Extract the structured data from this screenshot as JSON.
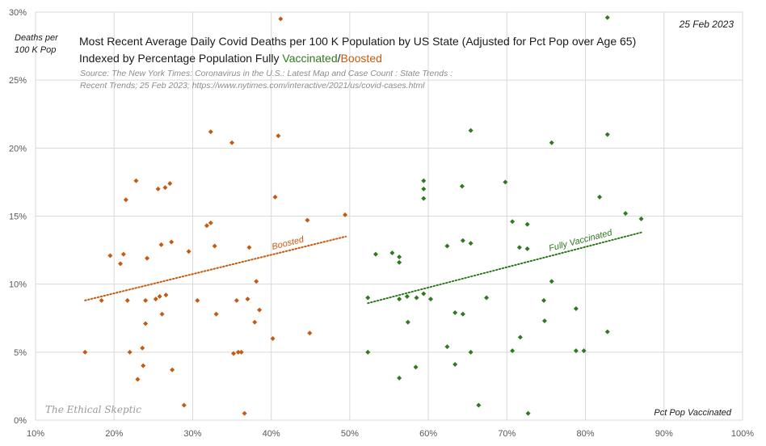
{
  "header": {
    "date": "25 Feb 2023",
    "watermark": "The Ethical Skeptic"
  },
  "chart_data": {
    "type": "scatter",
    "title_line1": "Most Recent Average Daily Covid Deaths per 100 K Population by US State (Adjusted for Pct Pop over Age 65)",
    "title_line2_prefix": "Indexed by Percentage Population Fully ",
    "title_vaccinated": "Vaccinated",
    "title_separator": "/",
    "title_boosted": "Boosted",
    "source": "Source: The New York Times: Coronavirus in the U.S.: Latest Map and Case Count : State Trends : Recent Trends; 25 Feb 2023; https://www.nytimes.com/interactive/2021/us/covid-cases.html",
    "ylabel": "Deaths per 100 K Pop",
    "xlabel": "Pct Pop Vaccinated",
    "xlim": [
      10,
      100
    ],
    "ylim": [
      0,
      30
    ],
    "x_ticks": [
      "10%",
      "20%",
      "30%",
      "40%",
      "50%",
      "60%",
      "70%",
      "80%",
      "90%",
      "100%"
    ],
    "y_ticks": [
      "0%",
      "5%",
      "10%",
      "15%",
      "20%",
      "25%",
      "30%"
    ],
    "grid": true,
    "series": [
      {
        "name": "Boosted",
        "color": "#c55a11",
        "trendline_label": "Boosted",
        "trendline": {
          "x0": 16.3,
          "y0": 8.8,
          "x1": 49.5,
          "y1": 13.5
        },
        "points": [
          {
            "x": 16.3,
            "y": 5.0
          },
          {
            "x": 18.4,
            "y": 8.8
          },
          {
            "x": 19.5,
            "y": 12.1
          },
          {
            "x": 20.8,
            "y": 11.5
          },
          {
            "x": 21.2,
            "y": 12.2
          },
          {
            "x": 21.5,
            "y": 16.2
          },
          {
            "x": 21.7,
            "y": 8.8
          },
          {
            "x": 22.0,
            "y": 5.0
          },
          {
            "x": 22.8,
            "y": 17.6
          },
          {
            "x": 23.0,
            "y": 3.0
          },
          {
            "x": 23.6,
            "y": 5.3
          },
          {
            "x": 23.7,
            "y": 4.0
          },
          {
            "x": 24.0,
            "y": 7.1
          },
          {
            "x": 24.0,
            "y": 8.8
          },
          {
            "x": 24.2,
            "y": 11.9
          },
          {
            "x": 25.3,
            "y": 8.9
          },
          {
            "x": 25.6,
            "y": 17.0
          },
          {
            "x": 25.8,
            "y": 9.1
          },
          {
            "x": 26.0,
            "y": 12.9
          },
          {
            "x": 26.1,
            "y": 7.8
          },
          {
            "x": 26.5,
            "y": 17.1
          },
          {
            "x": 26.6,
            "y": 9.2
          },
          {
            "x": 27.1,
            "y": 17.4
          },
          {
            "x": 27.3,
            "y": 13.1
          },
          {
            "x": 27.4,
            "y": 3.7
          },
          {
            "x": 28.9,
            "y": 1.1
          },
          {
            "x": 29.5,
            "y": 12.4
          },
          {
            "x": 30.6,
            "y": 8.8
          },
          {
            "x": 31.8,
            "y": 14.3
          },
          {
            "x": 32.3,
            "y": 21.2
          },
          {
            "x": 32.3,
            "y": 14.5
          },
          {
            "x": 32.8,
            "y": 12.8
          },
          {
            "x": 33.0,
            "y": 7.8
          },
          {
            "x": 35.0,
            "y": 20.4
          },
          {
            "x": 35.2,
            "y": 4.9
          },
          {
            "x": 35.6,
            "y": 8.8
          },
          {
            "x": 35.8,
            "y": 5.0
          },
          {
            "x": 36.2,
            "y": 5.0
          },
          {
            "x": 36.6,
            "y": 0.5
          },
          {
            "x": 37.0,
            "y": 8.9
          },
          {
            "x": 37.2,
            "y": 12.7
          },
          {
            "x": 37.9,
            "y": 7.2
          },
          {
            "x": 38.1,
            "y": 10.2
          },
          {
            "x": 38.5,
            "y": 8.1
          },
          {
            "x": 40.2,
            "y": 6.0
          },
          {
            "x": 40.5,
            "y": 16.4
          },
          {
            "x": 40.9,
            "y": 20.9
          },
          {
            "x": 41.2,
            "y": 29.5
          },
          {
            "x": 44.6,
            "y": 14.7
          },
          {
            "x": 44.9,
            "y": 6.4
          },
          {
            "x": 49.4,
            "y": 15.1
          }
        ]
      },
      {
        "name": "Fully Vaccinated",
        "color": "#2f7a1f",
        "trendline_label": "Fully Vaccinated",
        "trendline": {
          "x0": 52.3,
          "y0": 8.6,
          "x1": 87.1,
          "y1": 13.8
        },
        "points": [
          {
            "x": 52.3,
            "y": 9.0
          },
          {
            "x": 52.3,
            "y": 5.0
          },
          {
            "x": 53.3,
            "y": 12.2
          },
          {
            "x": 55.4,
            "y": 12.3
          },
          {
            "x": 56.3,
            "y": 12.0
          },
          {
            "x": 56.3,
            "y": 11.6
          },
          {
            "x": 56.3,
            "y": 8.9
          },
          {
            "x": 56.3,
            "y": 3.1
          },
          {
            "x": 57.3,
            "y": 9.1
          },
          {
            "x": 57.4,
            "y": 7.2
          },
          {
            "x": 58.4,
            "y": 3.9
          },
          {
            "x": 58.5,
            "y": 9.0
          },
          {
            "x": 59.4,
            "y": 17.6
          },
          {
            "x": 59.4,
            "y": 17.0
          },
          {
            "x": 59.4,
            "y": 16.3
          },
          {
            "x": 59.4,
            "y": 9.3
          },
          {
            "x": 60.3,
            "y": 8.9
          },
          {
            "x": 62.4,
            "y": 12.8
          },
          {
            "x": 62.4,
            "y": 5.4
          },
          {
            "x": 63.4,
            "y": 7.9
          },
          {
            "x": 63.4,
            "y": 4.1
          },
          {
            "x": 64.3,
            "y": 17.2
          },
          {
            "x": 64.4,
            "y": 13.2
          },
          {
            "x": 64.4,
            "y": 7.8
          },
          {
            "x": 65.4,
            "y": 21.3
          },
          {
            "x": 65.4,
            "y": 13.0
          },
          {
            "x": 65.4,
            "y": 5.0
          },
          {
            "x": 66.4,
            "y": 1.1
          },
          {
            "x": 67.4,
            "y": 9.0
          },
          {
            "x": 69.8,
            "y": 17.5
          },
          {
            "x": 70.7,
            "y": 14.6
          },
          {
            "x": 70.7,
            "y": 5.1
          },
          {
            "x": 71.6,
            "y": 12.7
          },
          {
            "x": 71.7,
            "y": 6.1
          },
          {
            "x": 72.6,
            "y": 14.4
          },
          {
            "x": 72.6,
            "y": 12.6
          },
          {
            "x": 72.7,
            "y": 0.5
          },
          {
            "x": 74.7,
            "y": 8.8
          },
          {
            "x": 74.8,
            "y": 7.3
          },
          {
            "x": 75.7,
            "y": 20.4
          },
          {
            "x": 75.7,
            "y": 10.2
          },
          {
            "x": 78.8,
            "y": 8.2
          },
          {
            "x": 78.8,
            "y": 5.1
          },
          {
            "x": 79.8,
            "y": 5.1
          },
          {
            "x": 81.8,
            "y": 16.4
          },
          {
            "x": 82.8,
            "y": 29.6
          },
          {
            "x": 82.8,
            "y": 21.0
          },
          {
            "x": 82.8,
            "y": 6.5
          },
          {
            "x": 85.1,
            "y": 15.2
          },
          {
            "x": 87.1,
            "y": 14.8
          }
        ]
      }
    ]
  }
}
